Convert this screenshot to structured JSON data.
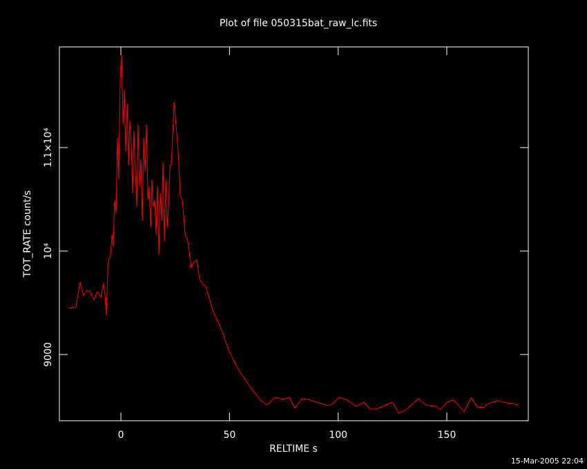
{
  "chart_data": {
    "type": "line",
    "title": "Plot of file 050315bat_raw_lc.fits",
    "x_label": "RELTIME  s",
    "y_label": "TOT_RATE  count/s",
    "footer": "15-Mar-2005 22:04",
    "xlim": [
      -28.3,
      187.5
    ],
    "ylim": [
      8360,
      11973
    ],
    "xticks": [
      0,
      50,
      100,
      150
    ],
    "yticks": [
      9000,
      {
        "value": 10000,
        "label": "10⁴"
      },
      {
        "value": 11000,
        "label": "1.1×10⁴"
      }
    ],
    "background": "#000000",
    "axis_color": "#ffffff",
    "series": [
      {
        "color": "#ff0000",
        "x": [
          -23.8,
          -20.7,
          -18.8,
          -17.2,
          -15.6,
          -14.0,
          -12.4,
          -10.8,
          -9.2,
          -8.0,
          -7.3,
          -6.7,
          -6.0,
          -5.4,
          -4.8,
          -4.1,
          -3.5,
          -2.9,
          -2.2,
          -1.6,
          -1.0,
          -0.3,
          0.3,
          1.0,
          1.6,
          2.2,
          2.9,
          3.5,
          4.1,
          4.8,
          5.4,
          6.0,
          6.7,
          7.3,
          7.9,
          8.6,
          9.2,
          9.9,
          10.5,
          11.1,
          11.8,
          12.4,
          13.0,
          13.7,
          14.3,
          14.9,
          15.6,
          16.2,
          16.8,
          17.5,
          18.1,
          18.8,
          19.4,
          20.0,
          20.7,
          21.3,
          21.9,
          22.6,
          23.2,
          23.8,
          24.5,
          25.1,
          26.4,
          27.3,
          28.3,
          29.6,
          30.8,
          32.4,
          33.7,
          35.0,
          36.2,
          37.5,
          38.8,
          40.7,
          42.6,
          44.8,
          47.0,
          49.3,
          51.5,
          54.0,
          57.2,
          60.4,
          64.2,
          67.4,
          70.9,
          74.7,
          77.6,
          80.1,
          83.3,
          87.1,
          90.9,
          94.7,
          96.6,
          100.4,
          104.3,
          108.1,
          111.9,
          114.7,
          117.6,
          120.8,
          124.9,
          127.8,
          131.0,
          134.1,
          137.0,
          140.2,
          144.6,
          147.2,
          150.0,
          153.2,
          157.9,
          161.2,
          164.0,
          166.9,
          169.1,
          173.6,
          177.4,
          180.2,
          182.8
        ],
        "values": [
          9447,
          9460,
          9700,
          9573,
          9620,
          9607,
          9527,
          9607,
          9553,
          9687,
          9573,
          9373,
          9860,
          9927,
          9947,
          10160,
          10040,
          10493,
          10360,
          11093,
          10693,
          11693,
          11893,
          11227,
          11560,
          10960,
          11427,
          10827,
          11260,
          11027,
          10560,
          11160,
          10760,
          10427,
          11227,
          10627,
          10893,
          10293,
          11093,
          10760,
          11227,
          10493,
          10627,
          10227,
          10693,
          10427,
          10493,
          10160,
          10627,
          9960,
          10560,
          10293,
          10860,
          10093,
          10693,
          10227,
          10427,
          10827,
          10827,
          11093,
          11440,
          11293,
          10960,
          10540,
          10493,
          10160,
          10093,
          9840,
          9893,
          9913,
          9733,
          9680,
          9667,
          9547,
          9407,
          9313,
          9200,
          9060,
          8960,
          8860,
          8760,
          8660,
          8560,
          8513,
          8587,
          8567,
          8587,
          8480,
          8573,
          8560,
          8533,
          8513,
          8507,
          8587,
          8560,
          8500,
          8540,
          8473,
          8473,
          8500,
          8540,
          8433,
          8460,
          8520,
          8573,
          8513,
          8500,
          8467,
          8540,
          8560,
          8447,
          8580,
          8493,
          8487,
          8527,
          8553,
          8533,
          8527,
          8513
        ]
      }
    ]
  }
}
